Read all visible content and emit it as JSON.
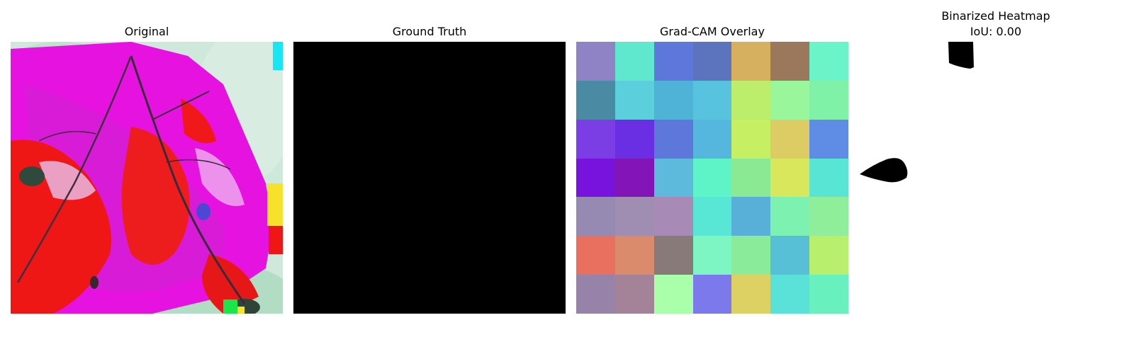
{
  "panels": {
    "original": {
      "title": "Original"
    },
    "ground_truth": {
      "title": "Ground Truth"
    },
    "gradcam": {
      "title": "Grad-CAM Overlay",
      "cells": [
        [
          "#8f82c5",
          "#5fe8cd",
          "#5d77db",
          "#5b74bd",
          "#d6b05f",
          "#9b775c",
          "#6bf4c7"
        ],
        [
          "#4a8aa3",
          "#5ccfdd",
          "#4fb3d8",
          "#57c3df",
          "#bdee6b",
          "#9af69b",
          "#7ff2a8"
        ],
        [
          "#7b3ee5",
          "#6a2fe2",
          "#5d77db",
          "#55b6de",
          "#c7ef63",
          "#ddcb63",
          "#5f8de6"
        ],
        [
          "#7813de",
          "#8214b8",
          "#5ebadc",
          "#5ff3c8",
          "#8aea93",
          "#d9e75c",
          "#58e5d4"
        ],
        [
          "#968ab3",
          "#a08eb2",
          "#a88ab7",
          "#58e7d5",
          "#58b0d8",
          "#7cf1b0",
          "#8fee99"
        ],
        [
          "#e9705f",
          "#da8b6b",
          "#887a79",
          "#7ef6c3",
          "#8aec9b",
          "#57c0d7",
          "#b8ef6d"
        ],
        [
          "#9783aa",
          "#a48399",
          "#aaffaa",
          "#7b79eb",
          "#dcd162",
          "#5ae1d8",
          "#69f0bf"
        ]
      ]
    },
    "binarized": {
      "title": "Binarized Heatmap\nIoU: 0.00"
    }
  }
}
